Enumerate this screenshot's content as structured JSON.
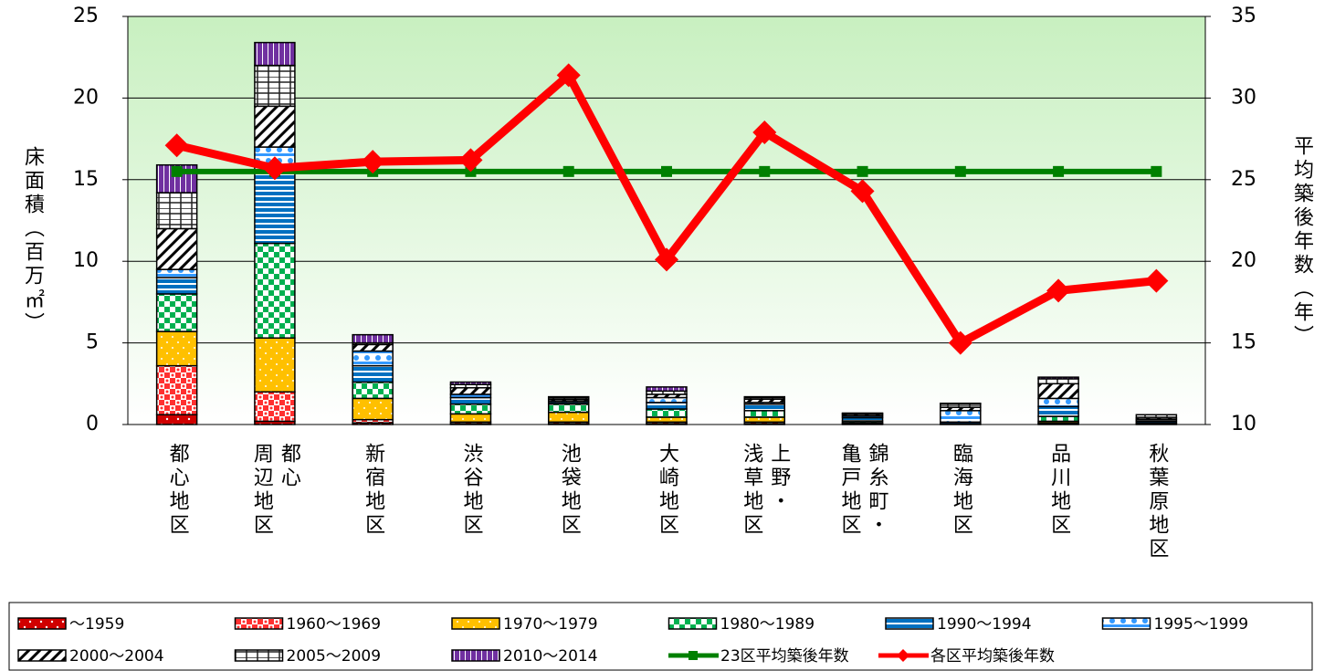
{
  "chart_data": {
    "type": "bar",
    "stacked": true,
    "categories": [
      "都心地区",
      "都心\n周辺地区",
      "新宿地区",
      "渋谷地区",
      "池袋地区",
      "大崎地区",
      "上野・\n浅草地区",
      "錦糸町・\n亀戸地区",
      "臨海地区",
      "品川地区",
      "秋葉原地区"
    ],
    "y_label": "床面積（百万㎡）",
    "y2_label": "平均築後年数（年）",
    "ylim": [
      0,
      25
    ],
    "yticks": [
      0,
      5,
      10,
      15,
      20,
      25
    ],
    "y2lim": [
      10,
      35
    ],
    "y2ticks": [
      10,
      15,
      20,
      25,
      30,
      35
    ],
    "grid": true,
    "legend": "bottom",
    "series": [
      {
        "name": "～1959",
        "color": "#d00000",
        "values": [
          0.6,
          0.2,
          0.1,
          0.05,
          0.05,
          0.05,
          0.05,
          0.02,
          0,
          0.05,
          0
        ]
      },
      {
        "name": "1960～1969",
        "color": "#ff3030",
        "values": [
          3.0,
          1.8,
          0.2,
          0.1,
          0.1,
          0.1,
          0.1,
          0.05,
          0,
          0.05,
          0
        ]
      },
      {
        "name": "1970～1979",
        "color": "#ffc000",
        "values": [
          2.1,
          3.3,
          1.3,
          0.5,
          0.6,
          0.3,
          0.3,
          0.05,
          0,
          0.1,
          0.05
        ]
      },
      {
        "name": "1980～1989",
        "color": "#00b050",
        "values": [
          2.3,
          5.8,
          1.0,
          0.6,
          0.5,
          0.5,
          0.4,
          0.1,
          0.05,
          0.3,
          0.05
        ]
      },
      {
        "name": "1990～1994",
        "color": "#0070c0",
        "values": [
          1.0,
          4.8,
          1.0,
          0.4,
          0.1,
          0.4,
          0.4,
          0.2,
          0.1,
          0.6,
          0.1
        ]
      },
      {
        "name": "1995～1999",
        "color": "#3399ff",
        "values": [
          0.5,
          1.1,
          0.9,
          0.2,
          0.1,
          0.3,
          0.1,
          0.1,
          0.7,
          0.5,
          0.1
        ]
      },
      {
        "name": "2000～2004",
        "color": "#000000",
        "values": [
          2.5,
          2.5,
          0.4,
          0.4,
          0.1,
          0.2,
          0.2,
          0.1,
          0.2,
          0.9,
          0.1
        ]
      },
      {
        "name": "2005～2009",
        "color": "#202020",
        "values": [
          2.2,
          2.5,
          0.1,
          0.2,
          0.1,
          0.2,
          0.1,
          0.05,
          0.2,
          0.3,
          0.2
        ]
      },
      {
        "name": "2010～2014",
        "color": "#7030a0",
        "values": [
          1.7,
          1.4,
          0.5,
          0.15,
          0.05,
          0.25,
          0.05,
          0.03,
          0.05,
          0.1,
          0
        ]
      },
      {
        "name": "23区平均築後年数",
        "type": "line",
        "axis": "y2",
        "color": "#008000",
        "marker": "square",
        "values": [
          25.5,
          25.5,
          25.5,
          25.5,
          25.5,
          25.5,
          25.5,
          25.5,
          25.5,
          25.5,
          25.5
        ]
      },
      {
        "name": "各区平均築後年数",
        "type": "line",
        "axis": "y2",
        "color": "#ff0000",
        "marker": "diamond",
        "values": [
          27.1,
          25.7,
          26.1,
          26.2,
          31.4,
          20.1,
          27.9,
          24.3,
          15.0,
          18.2,
          18.8
        ]
      }
    ]
  }
}
